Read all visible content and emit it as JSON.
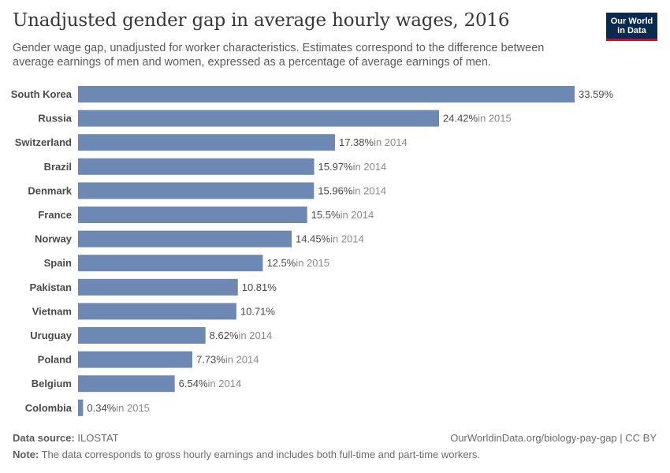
{
  "header": {
    "title": "Unadjusted gender gap in average hourly wages, 2016",
    "subtitle": "Gender wage gap, unadjusted for worker characteristics. Estimates correspond to the difference between average earnings of men and women, expressed as a percentage of average earnings of men.",
    "logo_line1": "Our World",
    "logo_line2": "in Data"
  },
  "chart_data": {
    "type": "bar",
    "orientation": "horizontal",
    "title": "Unadjusted gender gap in average hourly wages, 2016",
    "categories": [
      "South Korea",
      "Russia",
      "Switzerland",
      "Brazil",
      "Denmark",
      "France",
      "Norway",
      "Spain",
      "Pakistan",
      "Vietnam",
      "Uruguay",
      "Poland",
      "Belgium",
      "Colombia"
    ],
    "values": [
      33.59,
      24.42,
      17.38,
      15.97,
      15.96,
      15.5,
      14.45,
      12.5,
      10.81,
      10.71,
      8.62,
      7.73,
      6.54,
      0.34
    ],
    "value_labels": [
      "33.59%",
      "24.42%",
      "17.38%",
      "15.97%",
      "15.96%",
      "15.5%",
      "14.45%",
      "12.5%",
      "10.81%",
      "10.71%",
      "8.62%",
      "7.73%",
      "6.54%",
      "0.34%"
    ],
    "year_notes": [
      "",
      "in 2015",
      "in 2014",
      "in 2014",
      "in 2014",
      "in 2014",
      "in 2014",
      "in 2015",
      "",
      "",
      "in 2014",
      "in 2014",
      "in 2014",
      "in 2015"
    ],
    "xlim": [
      0,
      33.59
    ],
    "bar_color": "#6d88b2",
    "grid": false,
    "legend": "none"
  },
  "footer": {
    "source_label": "Data source:",
    "source_value": "ILOSTAT",
    "url": "OurWorldinData.org/biology-pay-gap | CC BY",
    "note_label": "Note:",
    "note_value": "The data corresponds to gross hourly earnings and includes both full-time and part-time workers."
  }
}
